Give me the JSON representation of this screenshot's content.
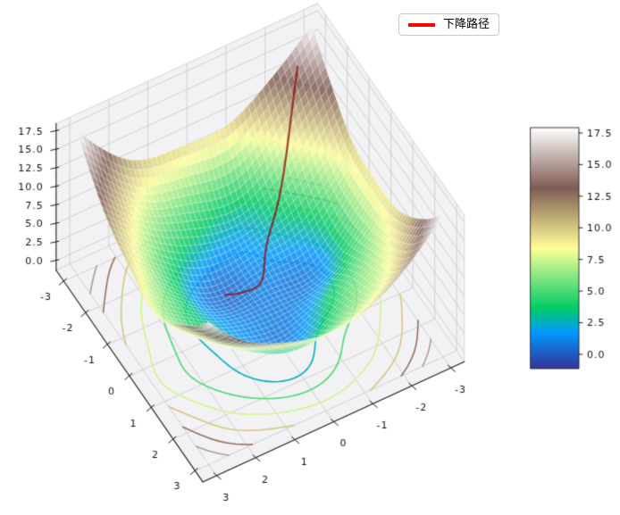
{
  "chart_data": {
    "type": "surface3d",
    "title": "",
    "legend": {
      "label": "下降路径",
      "color": "#ff0000"
    },
    "view": {
      "elev": 30,
      "azim": -60
    },
    "x_range": [
      -3,
      3
    ],
    "y_range": [
      -3,
      3
    ],
    "z_range": [
      -1.3,
      18.5
    ],
    "xticks": {
      "values": [
        -3,
        -2,
        -1,
        0,
        1,
        2,
        3
      ],
      "labels": [
        "-3",
        "-2",
        "-1",
        "0",
        "1",
        "2",
        "3"
      ]
    },
    "yticks": {
      "values": [
        -3,
        -2,
        -1,
        0,
        1,
        2,
        3
      ],
      "labels": [
        "-3",
        "-2",
        "-1",
        "0",
        "1",
        "2",
        "3"
      ]
    },
    "zticks": {
      "values": [
        0,
        2.5,
        5,
        7.5,
        10,
        12.5,
        15,
        17.5
      ],
      "labels": [
        "0.0",
        "2.5",
        "5.0",
        "7.5",
        "10.0",
        "12.5",
        "15.0",
        "17.5"
      ]
    },
    "surface": {
      "formula": "f(x,y) = x^2 + y^2 + (1 - 0.04*(x^2+y^2)) * noise(x,y)",
      "grid_n": 48,
      "alpha": 0.85,
      "noise_terms": [
        {
          "amp": 0.45,
          "fx": 1.5,
          "fy": 0.8,
          "phase": 1.2,
          "fn": "sin"
        },
        {
          "amp": 0.4,
          "fx": 2.2,
          "fy": -1.7,
          "phase": 0.6,
          "fn": "cos"
        },
        {
          "amp": 0.35,
          "fx": 0.9,
          "fy": 2.4,
          "phase": 2.8,
          "fn": "sin"
        },
        {
          "amp": 0.25,
          "fx": 3.0,
          "fy": 1.1,
          "phase": 4.2,
          "fn": "cos"
        },
        {
          "amp": 0.2,
          "fx": 1.8,
          "fy": -2.6,
          "phase": 1.1,
          "fn": "sin"
        }
      ]
    },
    "colormap": {
      "name": "terrain",
      "stops": [
        [
          0.0,
          "#333399"
        ],
        [
          0.15,
          "#0099ff"
        ],
        [
          0.25,
          "#00cc66"
        ],
        [
          0.5,
          "#ffff99"
        ],
        [
          0.75,
          "#805c54"
        ],
        [
          1.0,
          "#ffffff"
        ]
      ]
    },
    "contours": {
      "levels": [
        0,
        2.5,
        5,
        7.5,
        10,
        12.5,
        15,
        17.5
      ],
      "plane": "z = z_min"
    },
    "descent_path": {
      "start": [
        -2.75,
        -2.5
      ],
      "learning_rate": 0.05,
      "steps": 180,
      "color": "#8f1010",
      "line_width": 2.2
    },
    "colorbar": {
      "vmin": -1.13,
      "vmax": 17.92,
      "tick_values": [
        0,
        2.5,
        5,
        7.5,
        10,
        12.5,
        15,
        17.5
      ],
      "tick_labels": [
        "0.0",
        "2.5",
        "5.0",
        "7.5",
        "10.0",
        "12.5",
        "15.0",
        "17.5"
      ]
    }
  }
}
